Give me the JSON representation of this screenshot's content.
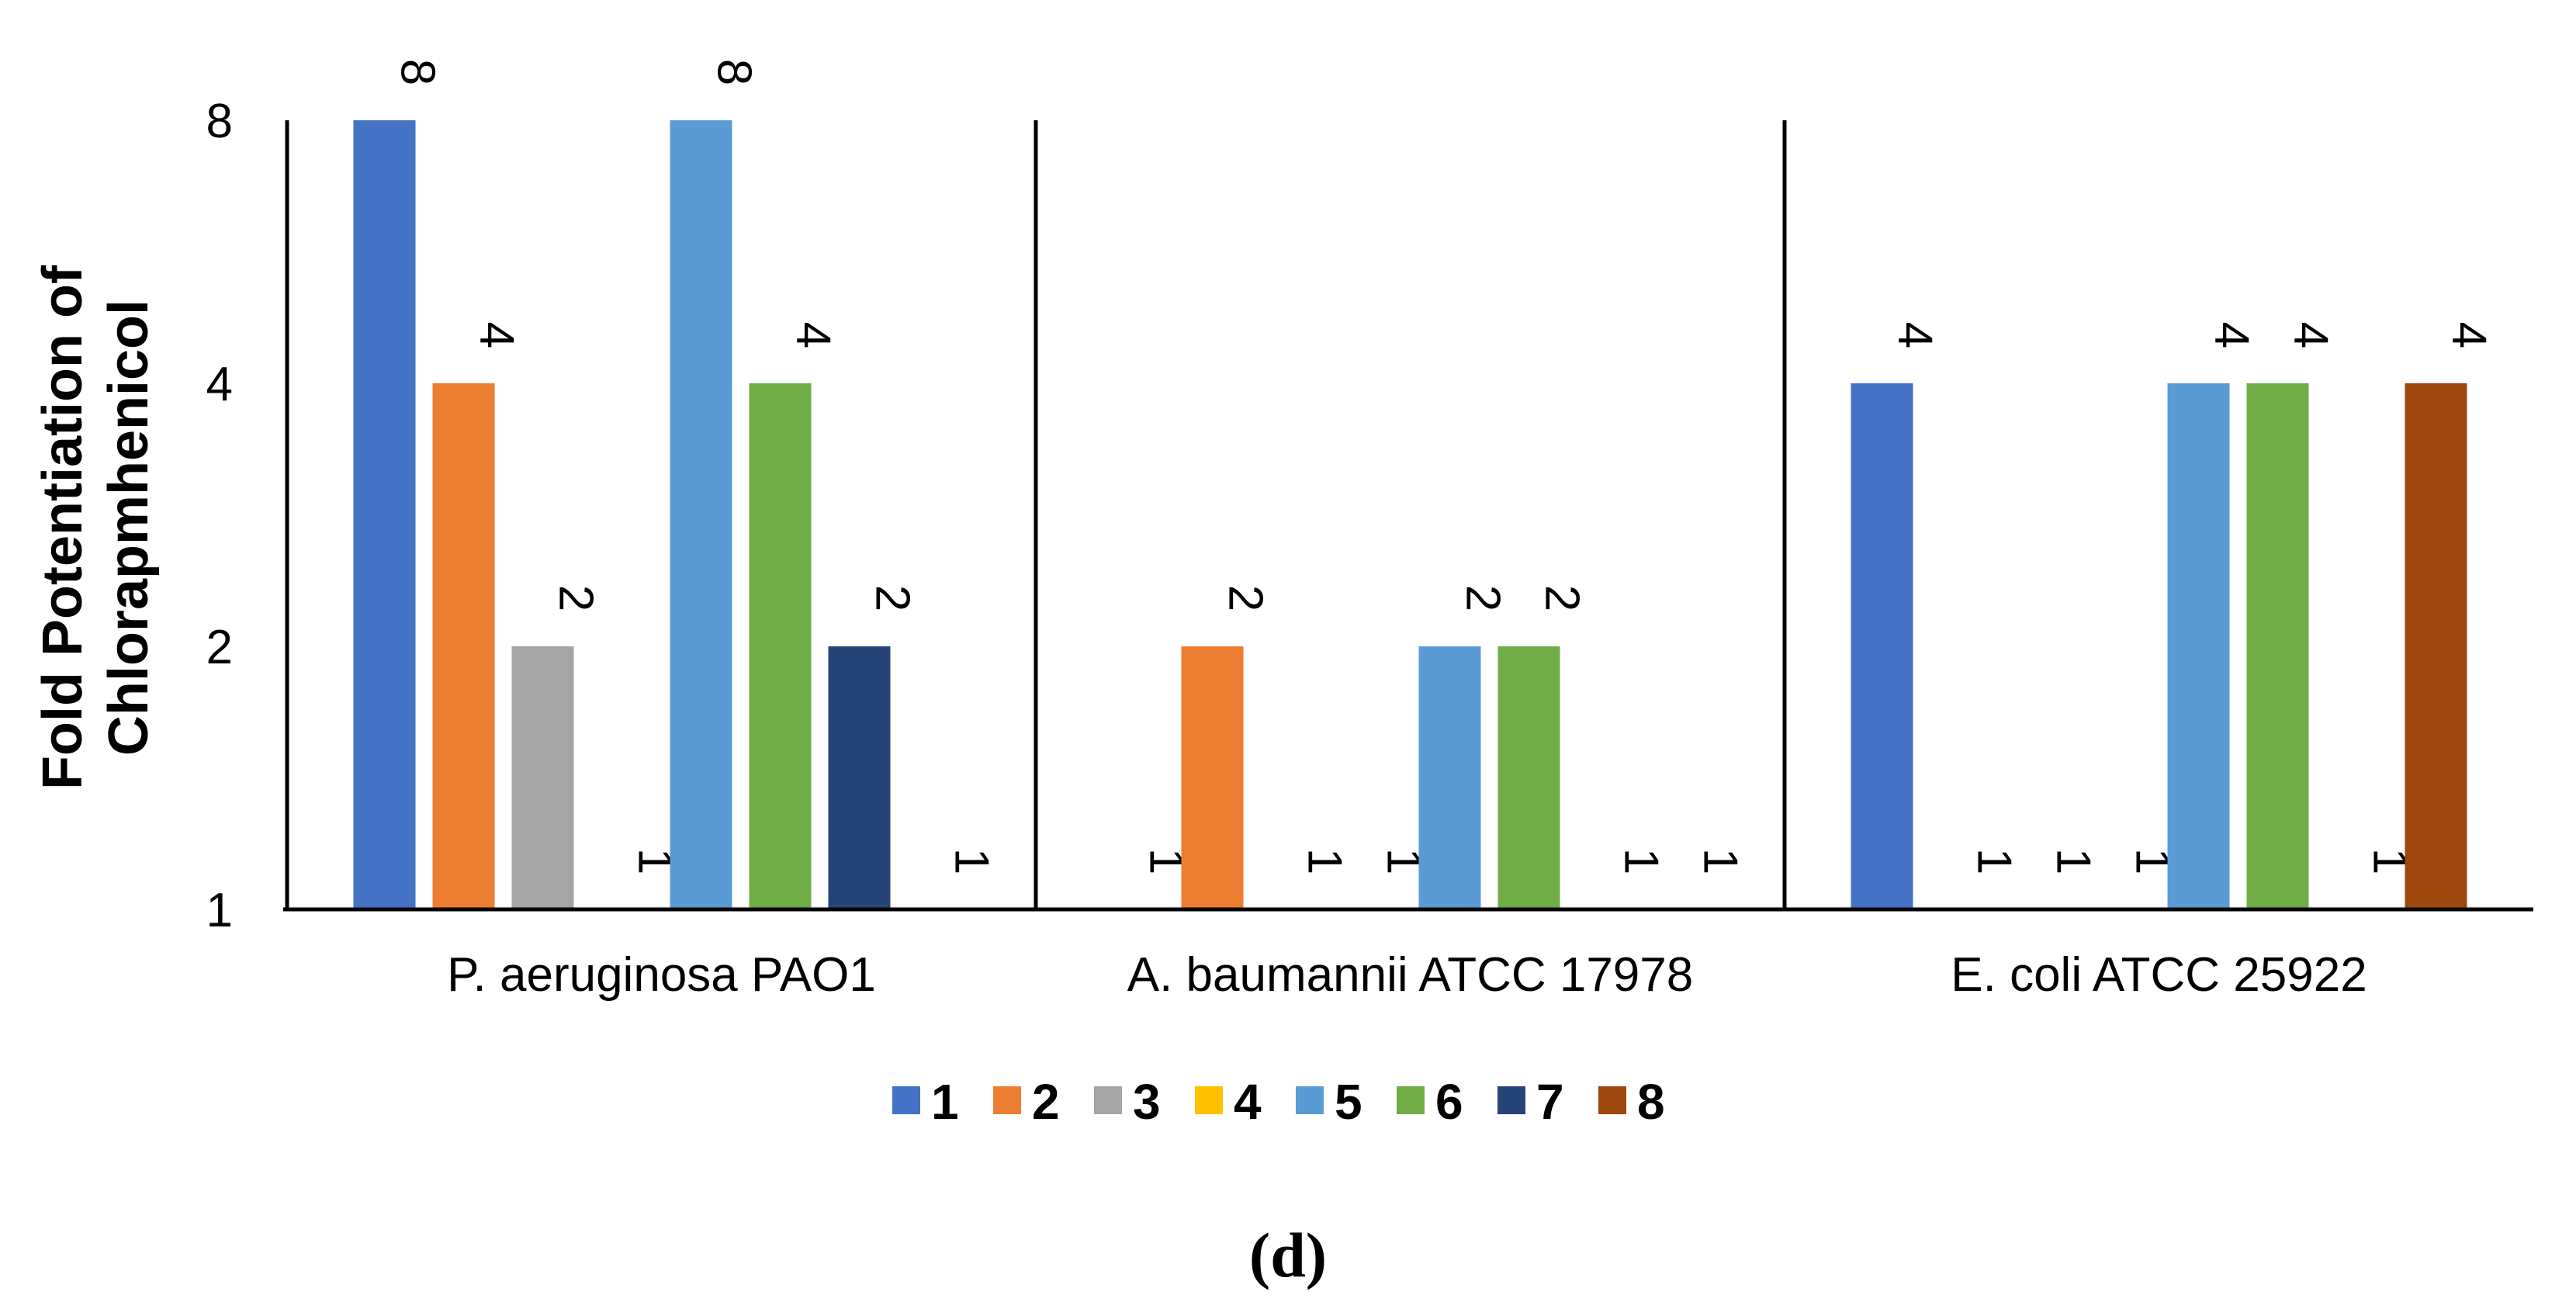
{
  "chart_data": {
    "type": "bar",
    "scale": "log2",
    "categories": [
      "P. aeruginosa PAO1",
      "A. baumannii ATCC 17978",
      "E. coli ATCC 25922"
    ],
    "series": [
      {
        "name": "1",
        "color": "#4472C4",
        "values": [
          8,
          1,
          4
        ]
      },
      {
        "name": "2",
        "color": "#ED7D31",
        "values": [
          4,
          2,
          1
        ]
      },
      {
        "name": "3",
        "color": "#A5A5A5",
        "values": [
          2,
          1,
          1
        ]
      },
      {
        "name": "4",
        "color": "#FFC000",
        "values": [
          1,
          1,
          1
        ]
      },
      {
        "name": "5",
        "color": "#5B9BD5",
        "values": [
          8,
          2,
          4
        ]
      },
      {
        "name": "6",
        "color": "#70AD47",
        "values": [
          4,
          2,
          4
        ]
      },
      {
        "name": "7",
        "color": "#264478",
        "values": [
          2,
          1,
          1
        ]
      },
      {
        "name": "8",
        "color": "#9E480E",
        "values": [
          1,
          1,
          4
        ]
      }
    ],
    "yticks": [
      1,
      2,
      4,
      8
    ],
    "ylim": [
      1,
      8
    ],
    "ylabel_lines": [
      "Fold Potentiation of",
      "Chlorapmhenicol"
    ],
    "xlabel": "",
    "legend_position": "bottom",
    "caption": "(d)"
  }
}
